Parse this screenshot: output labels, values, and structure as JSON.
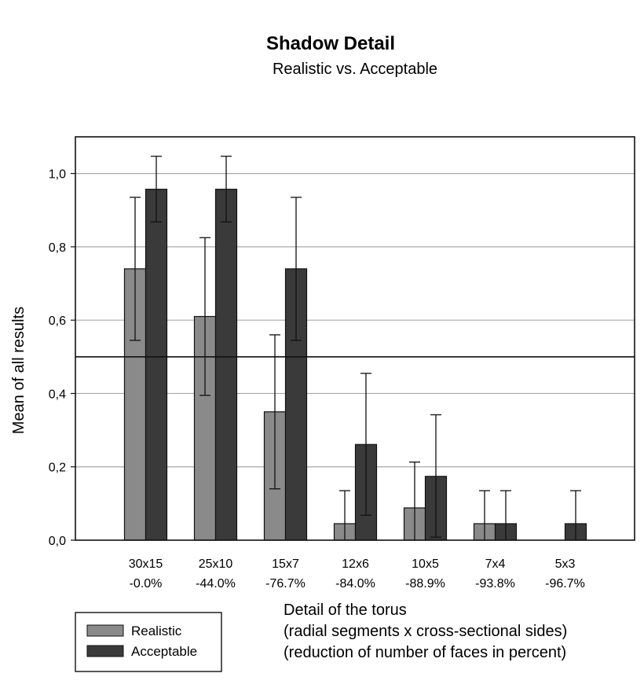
{
  "chart_data": {
    "type": "bar",
    "title": "Shadow Detail",
    "subtitle": "Realistic vs. Acceptable",
    "ylabel": "Mean of all results",
    "xlabel_lines": [
      "Detail of the torus",
      "(radial segments x cross-sectional sides)",
      "(reduction of number of faces in percent)"
    ],
    "categories": [
      "30x15",
      "25x10",
      "15x7",
      "12x6",
      "10x5",
      "7x4",
      "5x3"
    ],
    "category_sublabels": [
      "-0.0%",
      "-44.0%",
      "-76.7%",
      "-84.0%",
      "-88.9%",
      "-93.8%",
      "-96.7%"
    ],
    "ylim": [
      0,
      1.1
    ],
    "yticks": [
      0.0,
      0.2,
      0.4,
      0.6,
      0.8,
      1.0
    ],
    "ytick_labels": [
      "0,0",
      "0,2",
      "0,4",
      "0,6",
      "0,8",
      "1,0"
    ],
    "reference_line": 0.5,
    "grid": true,
    "legend_position": "bottom-left",
    "series": [
      {
        "name": "Realistic",
        "color": "#8a8a8a",
        "values": [
          0.74,
          0.61,
          0.35,
          0.045,
          0.088,
          0.045,
          0.0
        ],
        "error_low": [
          0.545,
          0.395,
          0.14,
          0.0,
          0.0,
          0.0,
          null
        ],
        "error_high": [
          0.935,
          0.825,
          0.56,
          0.135,
          0.213,
          0.135,
          null
        ]
      },
      {
        "name": "Acceptable",
        "color": "#3a3a3a",
        "values": [
          0.957,
          0.957,
          0.74,
          0.261,
          0.174,
          0.045,
          0.045
        ],
        "error_low": [
          0.868,
          0.868,
          0.545,
          0.068,
          0.008,
          0.0,
          0.0
        ],
        "error_high": [
          1.047,
          1.047,
          0.935,
          0.455,
          0.342,
          0.135,
          0.135
        ]
      }
    ]
  }
}
